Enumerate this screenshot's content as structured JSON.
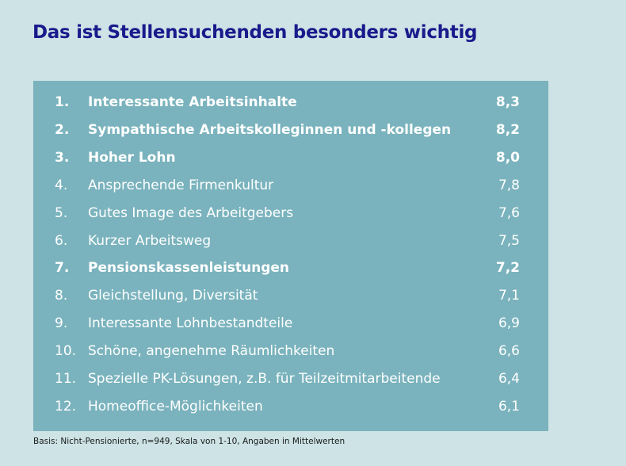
{
  "title": "Das ist Stellensuchenden besonders wichtig",
  "footnote": "Basis: Nicht-Pensionierte, n=949, Skala von 1-10, Angaben in Mittelwerten",
  "colors": {
    "background": "#cde3e6",
    "panel": "#7ab3bd",
    "title": "#1a1a8c",
    "text": "#ffffff"
  },
  "chart_data": {
    "type": "table",
    "title": "Das ist Stellensuchenden besonders wichtig",
    "rows": [
      {
        "rank": "1.",
        "label": "Interessante Arbeitsinhalte",
        "value": "8,3",
        "bold": true
      },
      {
        "rank": "2.",
        "label": "Sympathische Arbeitskolleginnen und -kollegen",
        "value": "8,2",
        "bold": true
      },
      {
        "rank": "3.",
        "label": "Hoher Lohn",
        "value": "8,0",
        "bold": true
      },
      {
        "rank": "4.",
        "label": "Ansprechende Firmenkultur",
        "value": "7,8",
        "bold": false
      },
      {
        "rank": "5.",
        "label": "Gutes Image des Arbeitgebers",
        "value": "7,6",
        "bold": false
      },
      {
        "rank": "6.",
        "label": "Kurzer Arbeitsweg",
        "value": "7,5",
        "bold": false
      },
      {
        "rank": "7.",
        "label": "Pensionskassenleistungen",
        "value": "7,2",
        "bold": true
      },
      {
        "rank": "8.",
        "label": "Gleichstellung, Diversität",
        "value": "7,1",
        "bold": false
      },
      {
        "rank": "9.",
        "label": "Interessante Lohnbestandteile",
        "value": "6,9",
        "bold": false
      },
      {
        "rank": "10.",
        "label": "Schöne, angenehme Räumlichkeiten",
        "value": "6,6",
        "bold": false
      },
      {
        "rank": "11.",
        "label": "Spezielle PK-Lösungen, z.B. für Teilzeitmitarbeitende",
        "value": "6,4",
        "bold": false
      },
      {
        "rank": "12.",
        "label": "Homeoffice-Möglichkeiten",
        "value": "6,1",
        "bold": false
      }
    ]
  }
}
